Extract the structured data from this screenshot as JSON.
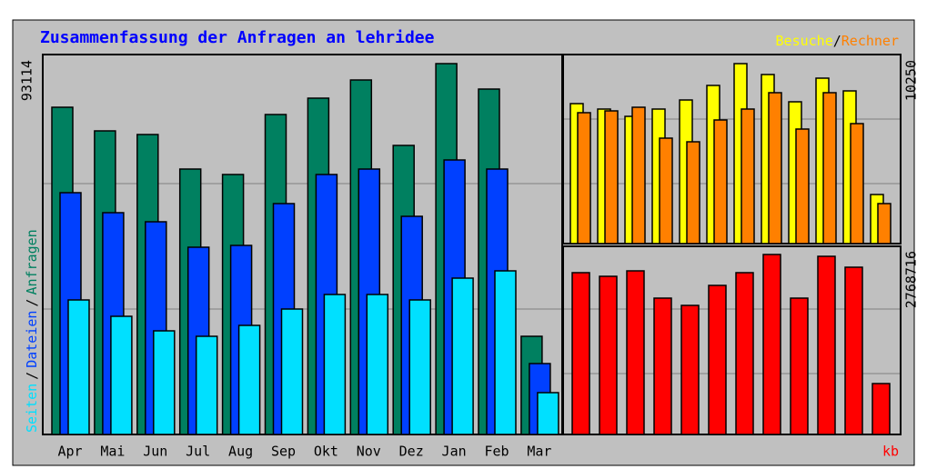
{
  "chart_data": [
    {
      "type": "bar",
      "title": "Zusammenfassung der Anfragen an lehridee",
      "separator": "/",
      "categories": [
        "Apr",
        "Mai",
        "Jun",
        "Jul",
        "Aug",
        "Sep",
        "Okt",
        "Nov",
        "Dez",
        "Jan",
        "Feb",
        "Mar"
      ],
      "series": [
        {
          "name": "Anfragen",
          "color": "#008060",
          "values": [
            82160,
            76226,
            75313,
            66641,
            65272,
            80334,
            84442,
            89006,
            72574,
            93114,
            86723,
            24648
          ]
        },
        {
          "name": "Dateien",
          "color": "#0040ff",
          "values": [
            60706,
            55686,
            53404,
            47014,
            47470,
            57968,
            65272,
            66641,
            54773,
            68923,
            66641,
            17801
          ]
        },
        {
          "name": "Seiten",
          "color": "#00e0ff",
          "values": [
            33777,
            29669,
            26017,
            24648,
            27387,
            31495,
            35146,
            35146,
            33777,
            39254,
            41080,
            10498
          ]
        }
      ],
      "ylim": [
        0,
        93114
      ],
      "yticks": [
        93114
      ]
    },
    {
      "type": "bar",
      "series": [
        {
          "name": "Besuche",
          "color": "#ffff00",
          "values": [
            7972,
            7662,
            7247,
            7662,
            8179,
            9008,
            10250,
            9629,
            8076,
            9422,
            8697,
            2795
          ]
        },
        {
          "name": "Rechner",
          "color": "#ff8000",
          "values": [
            7455,
            7558,
            7765,
            6005,
            5798,
            7040,
            7662,
            8594,
            6523,
            8594,
            6833,
            2278
          ]
        }
      ],
      "ylim": [
        0,
        10250
      ],
      "yticks": [
        10250
      ]
    },
    {
      "type": "bar",
      "series": [
        {
          "name": "kb",
          "color": "#ff0000",
          "values": [
            2489023,
            2433080,
            2516996,
            2097512,
            1985645,
            2293274,
            2489023,
            2768716,
            2097512,
            2740749,
            2572948,
            783070
          ]
        }
      ],
      "ylim": [
        0,
        2768716
      ],
      "yticks": [
        2768716
      ]
    }
  ]
}
